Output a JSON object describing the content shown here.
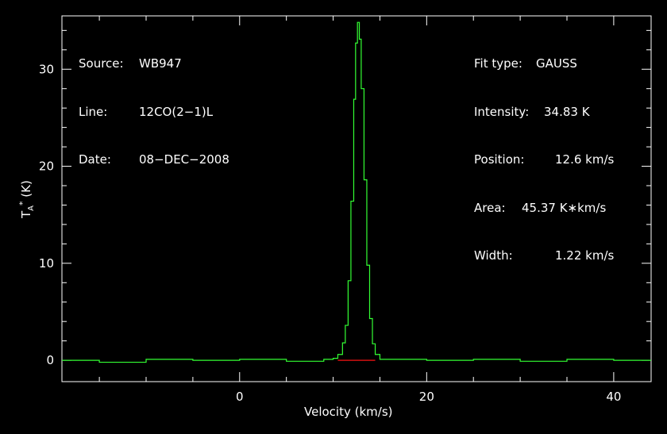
{
  "chart_data": {
    "type": "line",
    "xlabel": "Velocity (km/s)",
    "ylabel": "T_A* (K)",
    "xlim": [
      -19,
      44
    ],
    "ylim": [
      -2.2,
      35.5
    ],
    "x_ticks": [
      0,
      20,
      40
    ],
    "y_ticks": [
      0,
      10,
      20,
      30
    ],
    "grid": false,
    "series": [
      {
        "kind": "spectrum",
        "color": "#33ff33",
        "x": [
          -19,
          -15,
          -10,
          -5,
          0,
          5,
          9,
          10,
          10.5,
          11,
          11.3,
          11.6,
          11.9,
          12.2,
          12.4,
          12.6,
          12.8,
          13.0,
          13.3,
          13.6,
          13.9,
          14.2,
          14.5,
          15,
          20,
          25,
          30,
          35,
          40,
          44
        ],
        "y": [
          0,
          -0.2,
          0.1,
          0.0,
          0.1,
          -0.1,
          0.1,
          0.2,
          0.6,
          1.8,
          3.6,
          8.2,
          16.4,
          26.9,
          32.7,
          34.83,
          33.1,
          28.0,
          18.6,
          9.8,
          4.3,
          1.7,
          0.6,
          0.1,
          0.0,
          0.1,
          -0.1,
          0.1,
          0.0,
          0.0
        ]
      },
      {
        "kind": "baseline",
        "color": "#d01010",
        "x": [
          10.5,
          14.5
        ],
        "y": [
          0,
          0
        ]
      }
    ]
  },
  "info_left": [
    {
      "key": "Source:",
      "value": "WB947"
    },
    {
      "key": "Line:",
      "value": "12CO(2−1)L"
    },
    {
      "key": "Date:",
      "value": "08−DEC−2008"
    }
  ],
  "info_right": [
    {
      "key": "Fit type:",
      "value": "GAUSS"
    },
    {
      "key": "Intensity:",
      "value": "34.83 K"
    },
    {
      "key": "Position:",
      "value": "12.6 km/s"
    },
    {
      "key": "Area:",
      "value": "45.37 K∗km/s"
    },
    {
      "key": "Width:",
      "value": "1.22 km/s"
    }
  ],
  "colors": {
    "background": "#000000",
    "axes": "#ffffff",
    "spectrum": "#33ff33",
    "fit_baseline": "#d01010"
  }
}
